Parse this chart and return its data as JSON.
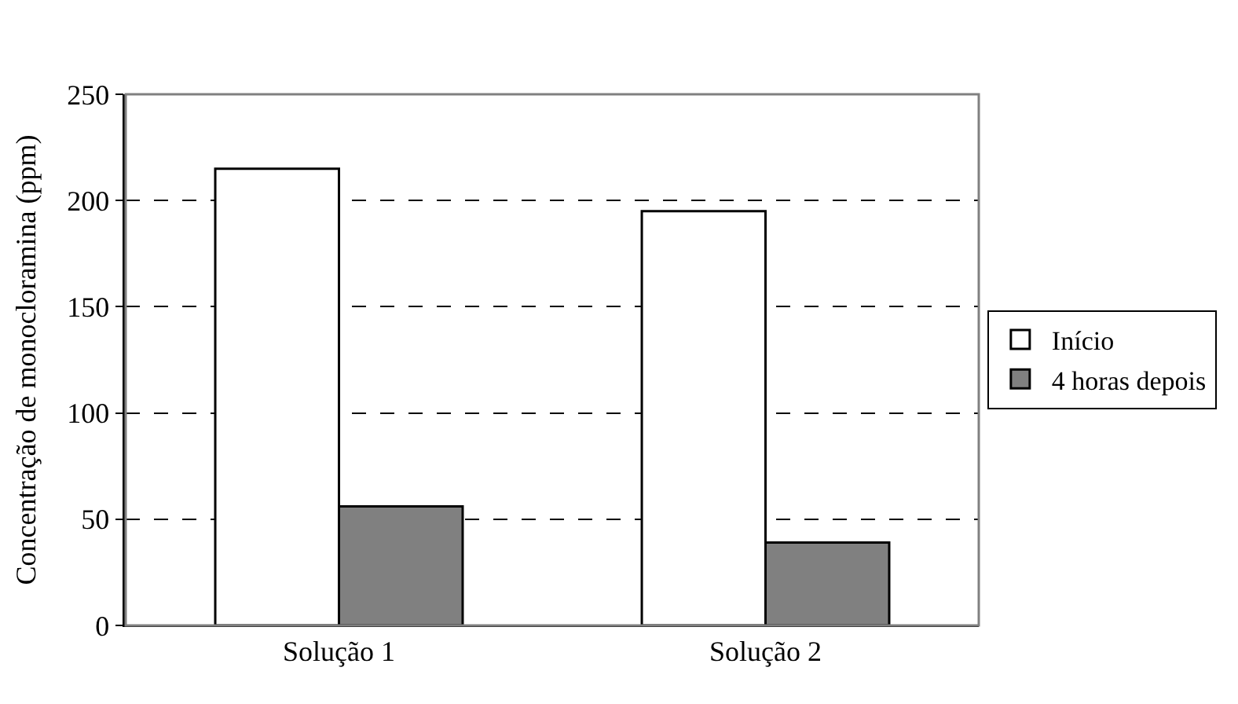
{
  "chart_data": {
    "type": "bar",
    "ylabel": "Concentração de monocloramina (ppm)",
    "categories": [
      "Solução 1",
      "Solução 2"
    ],
    "series": [
      {
        "name": "Início",
        "color": "#ffffff",
        "values": [
          215,
          195
        ]
      },
      {
        "name": "4 horas depois",
        "color": "#808080",
        "values": [
          56,
          39
        ]
      }
    ],
    "ylim": [
      0,
      250
    ],
    "yticks": [
      0,
      50,
      100,
      150,
      200,
      250
    ],
    "grid": "y",
    "legend": "right"
  }
}
